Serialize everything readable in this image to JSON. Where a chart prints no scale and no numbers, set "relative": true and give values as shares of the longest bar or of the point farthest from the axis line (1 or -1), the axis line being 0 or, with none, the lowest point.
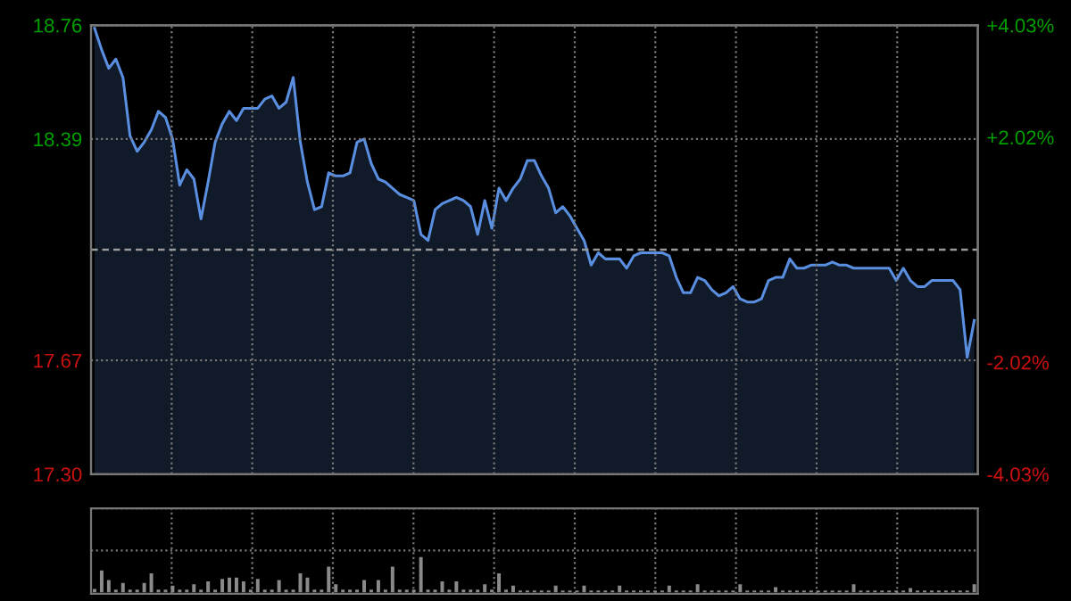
{
  "chart_data": [
    {
      "type": "area",
      "categories": [
        null,
        null,
        null,
        null,
        null,
        null,
        null,
        null,
        null,
        null,
        null,
        null,
        null,
        null,
        null,
        null,
        null,
        null,
        null,
        null,
        null,
        null,
        null,
        null,
        null,
        null,
        null,
        null,
        null,
        null,
        null,
        null,
        null,
        null,
        null,
        null,
        null,
        null,
        null,
        null,
        null,
        null,
        null,
        null,
        null,
        null,
        null,
        null,
        null,
        null,
        null,
        null,
        null,
        null,
        null,
        null,
        null,
        null,
        null,
        null,
        null,
        null,
        null,
        null,
        null,
        null,
        null,
        null,
        null,
        null,
        null,
        null,
        null,
        null,
        null,
        null,
        null,
        null,
        null,
        null,
        null,
        null,
        null,
        null,
        null,
        null,
        null,
        null,
        null,
        null,
        null,
        null,
        null,
        null,
        null,
        null,
        null,
        null,
        null,
        null,
        null,
        null,
        null,
        null,
        null,
        null,
        null,
        null,
        null,
        null,
        null,
        null,
        null,
        null,
        null,
        null,
        null,
        null,
        null,
        null,
        null,
        null,
        null,
        null,
        null
      ],
      "series": [
        {
          "color": "#5a8ee0",
          "values": [
            18.75,
            18.68,
            18.62,
            18.65,
            18.59,
            18.4,
            18.35,
            18.38,
            18.42,
            18.48,
            18.46,
            18.39,
            18.24,
            18.29,
            18.26,
            18.13,
            18.25,
            18.38,
            18.44,
            18.48,
            18.45,
            18.49,
            18.49,
            18.49,
            18.52,
            18.53,
            18.49,
            18.51,
            18.59,
            18.38,
            18.25,
            18.16,
            18.17,
            18.28,
            18.27,
            18.27,
            18.28,
            18.38,
            18.39,
            18.31,
            18.26,
            18.25,
            18.23,
            18.21,
            18.2,
            18.19,
            18.08,
            18.06,
            18.16,
            18.18,
            18.19,
            18.2,
            18.19,
            18.17,
            18.08,
            18.19,
            18.1,
            18.23,
            18.19,
            18.23,
            18.26,
            18.32,
            18.32,
            18.27,
            18.23,
            18.15,
            18.17,
            18.14,
            18.1,
            18.06,
            17.98,
            18.02,
            18.0,
            18.0,
            18.0,
            17.97,
            18.01,
            18.02,
            18.02,
            18.02,
            18.02,
            18.01,
            17.94,
            17.89,
            17.89,
            17.94,
            17.93,
            17.9,
            17.88,
            17.89,
            17.91,
            17.87,
            17.86,
            17.86,
            17.87,
            17.93,
            17.94,
            17.94,
            18.0,
            17.97,
            17.97,
            17.98,
            17.98,
            17.98,
            17.99,
            17.98,
            17.98,
            17.97,
            17.97,
            17.97,
            17.97,
            17.97,
            17.97,
            17.93,
            17.97,
            17.93,
            17.91,
            17.91,
            17.93,
            17.93,
            17.93,
            17.93,
            17.9,
            17.68,
            17.8
          ]
        }
      ],
      "ylim": [
        17.3,
        18.76
      ],
      "yticks": [
        {
          "value": 17.3,
          "label": "17.30"
        },
        17.67,
        18.39,
        18.76
      ],
      "y2lim": [
        -4.03,
        4.03
      ],
      "y2ticks": [
        {
          "value": -4.03,
          "label": "-4.03%"
        },
        {
          "value": -2.02,
          "label": "-2.02%"
        },
        {
          "value": 2.02,
          "label": "+2.02%"
        },
        {
          "value": 4.03,
          "label": "+4.03%"
        }
      ],
      "ref_lines": [
        {
          "axis": "y",
          "value": 18.03,
          "line_style": "dashed"
        }
      ],
      "grid": true
    },
    {
      "type": "bar",
      "relative": true,
      "grid": true,
      "categories": [
        null,
        null,
        null,
        null,
        null,
        null,
        null,
        null,
        null,
        null,
        null,
        null,
        null,
        null,
        null,
        null,
        null,
        null,
        null,
        null,
        null,
        null,
        null,
        null,
        null,
        null,
        null,
        null,
        null,
        null,
        null,
        null,
        null,
        null,
        null,
        null,
        null,
        null,
        null,
        null,
        null,
        null,
        null,
        null,
        null,
        null,
        null,
        null,
        null,
        null,
        null,
        null,
        null,
        null,
        null,
        null,
        null,
        null,
        null,
        null,
        null,
        null,
        null,
        null,
        null,
        null,
        null,
        null,
        null,
        null,
        null,
        null,
        null,
        null,
        null,
        null,
        null,
        null,
        null,
        null,
        null,
        null,
        null,
        null,
        null,
        null,
        null,
        null,
        null,
        null,
        null,
        null,
        null,
        null,
        null,
        null,
        null,
        null,
        null,
        null,
        null,
        null,
        null,
        null,
        null,
        null,
        null,
        null,
        null,
        null,
        null,
        null,
        null,
        null,
        null,
        null,
        null,
        null,
        null,
        null,
        null,
        null,
        null,
        null,
        null
      ],
      "series": [
        {
          "color": "#8a8a8a",
          "values": [
            0.1,
            0.62,
            0.35,
            0.08,
            0.27,
            0.08,
            0.08,
            0.27,
            0.54,
            0.08,
            0.08,
            0.19,
            0.08,
            0.08,
            0.23,
            0.08,
            0.31,
            0.08,
            0.38,
            0.42,
            0.42,
            0.31,
            0.08,
            0.38,
            0.08,
            0.08,
            0.35,
            0.08,
            0.08,
            0.54,
            0.42,
            0.08,
            0.08,
            0.73,
            0.23,
            0.08,
            0.08,
            0.08,
            0.35,
            0.08,
            0.35,
            0.08,
            0.73,
            0.08,
            0.08,
            0.08,
            1,
            0.08,
            0.08,
            0.31,
            0.08,
            0.31,
            0.08,
            0.08,
            0.08,
            0.23,
            0.08,
            0.54,
            0.08,
            0.19,
            0.05,
            0.05,
            0.05,
            0.05,
            0.05,
            0.19,
            0.05,
            0.05,
            0.05,
            0.19,
            0.05,
            0.05,
            0.05,
            0.05,
            0.19,
            0.05,
            0.05,
            0.05,
            0.05,
            0.05,
            0.05,
            0.19,
            0.05,
            0.05,
            0.05,
            0.23,
            0.05,
            0.05,
            0.05,
            0.05,
            0.05,
            0.23,
            0.05,
            0.05,
            0.05,
            0.05,
            0.15,
            0.05,
            0.05,
            0.05,
            0.05,
            0.05,
            0.05,
            0.05,
            0.05,
            0.05,
            0.05,
            0.23,
            0.05,
            0.05,
            0.05,
            0.05,
            0.05,
            0.05,
            0.05,
            0.12,
            0.05,
            0.05,
            0.05,
            0.05,
            0.05,
            0.05,
            0.05,
            0.05,
            0.23
          ]
        }
      ]
    }
  ]
}
